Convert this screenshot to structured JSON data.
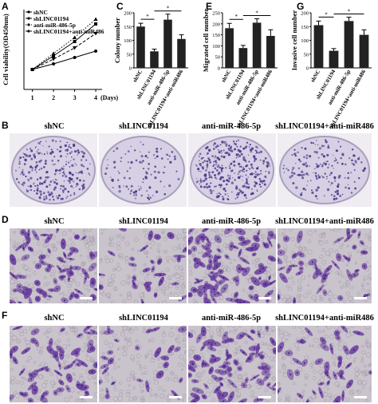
{
  "panels": {
    "A": "A",
    "B": "B",
    "C": "C",
    "D": "D",
    "E": "E",
    "F": "F",
    "G": "G"
  },
  "colors": {
    "bar": "#222222",
    "plate_bg": "#d7cfe3",
    "colony": "#4a3b8a",
    "cell_stain": "#6b3fa0",
    "field_bg": "#c9c3cc"
  },
  "groups": [
    "shNC",
    "shLINC01194",
    "anti-miR-486-5p",
    "shLINC01194+anti-miR486"
  ],
  "row_labels": {
    "B": [
      "shNC",
      "shLINC01194",
      "anti-miR-486-5p",
      "shLINC01194+anti-miR486"
    ],
    "D": [
      "shNC",
      "shLINC01194",
      "anti-miR-486-5p",
      "shLINC01194+anti-miR486"
    ],
    "F": [
      "shNC",
      "shLINC01194",
      "anti-miR-486-5p",
      "shLINC01194+anti-miR486"
    ]
  },
  "chart_data": [
    {
      "panel": "A",
      "type": "line",
      "ylabel": "Cell viability(OD450nm)",
      "xlabel": "(Days)",
      "x": [
        1,
        2,
        3,
        4
      ],
      "ylim": [
        0,
        1.0
      ],
      "legend": "top-left",
      "series": [
        {
          "name": "shNC",
          "values": [
            0.25,
            0.42,
            0.6,
            0.82
          ],
          "marker": "square",
          "dash": "solid"
        },
        {
          "name": "shLINC01194",
          "values": [
            0.25,
            0.32,
            0.4,
            0.48
          ],
          "marker": "circle",
          "dash": "solid"
        },
        {
          "name": "anti-miR-486-5p",
          "values": [
            0.25,
            0.45,
            0.65,
            0.88
          ],
          "marker": "triangle",
          "dash": "dotted"
        },
        {
          "name": "shLINC01194+anti-miR486",
          "values": [
            0.25,
            0.38,
            0.52,
            0.7
          ],
          "marker": "triangle-down",
          "dash": "dashed"
        }
      ]
    },
    {
      "panel": "C",
      "type": "bar",
      "ylabel": "Colony number",
      "ylim": [
        0,
        200
      ],
      "yticks": [
        "0",
        "50",
        "100",
        "150",
        "200"
      ],
      "categories": [
        "shNC",
        "shLINC01194",
        "anti-miR-486-5p",
        "shLINC01194+anti-miR486"
      ],
      "values": [
        150,
        60,
        175,
        105
      ],
      "errors": [
        12,
        8,
        20,
        15
      ],
      "annotations": [
        "*",
        "*"
      ]
    },
    {
      "panel": "E",
      "type": "bar",
      "ylabel": "Migrated cell number",
      "ylim": [
        0,
        250
      ],
      "yticks": [
        "0",
        "50",
        "100",
        "150",
        "200",
        "250"
      ],
      "categories": [
        "shNC",
        "shLINC01194",
        "anti-miR-486-5p",
        "shLINC01194+anti-miR486"
      ],
      "values": [
        180,
        90,
        205,
        145
      ],
      "errors": [
        22,
        12,
        18,
        28
      ],
      "annotations": [
        "*",
        "*"
      ]
    },
    {
      "panel": "G",
      "type": "bar",
      "ylabel": "Invasive cell number",
      "ylim": [
        0,
        200
      ],
      "yticks": [
        "0",
        "50",
        "100",
        "150",
        "200"
      ],
      "categories": [
        "shNC",
        "shLINC01194",
        "anti-miR-486-5p",
        "shLINC01194+anti-miR486"
      ],
      "values": [
        155,
        62,
        170,
        120
      ],
      "errors": [
        15,
        8,
        14,
        18
      ],
      "annotations": [
        "*",
        "*"
      ]
    }
  ]
}
